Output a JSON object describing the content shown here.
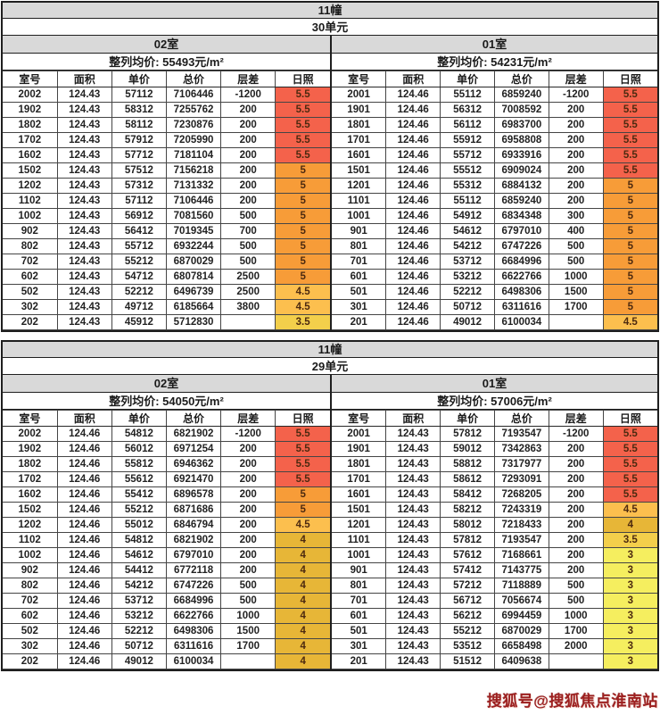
{
  "columns": [
    "室号",
    "面积",
    "单价",
    "总价",
    "层差",
    "日照"
  ],
  "sections": [
    {
      "building": "11幢",
      "unit": "30单元",
      "halves": [
        {
          "room": "02室",
          "avg_label": "整列均价: 55493元/m²",
          "rows": [
            [
              "2002",
              "124.43",
              "57112",
              "7106446",
              "-1200",
              "5.5"
            ],
            [
              "1902",
              "124.43",
              "58312",
              "7255762",
              "200",
              "5.5"
            ],
            [
              "1802",
              "124.43",
              "58112",
              "7230876",
              "200",
              "5.5"
            ],
            [
              "1702",
              "124.43",
              "57912",
              "7205990",
              "200",
              "5.5"
            ],
            [
              "1602",
              "124.43",
              "57712",
              "7181104",
              "200",
              "5.5"
            ],
            [
              "1502",
              "124.43",
              "57512",
              "7156218",
              "200",
              "5"
            ],
            [
              "1202",
              "124.43",
              "57312",
              "7131332",
              "200",
              "5"
            ],
            [
              "1102",
              "124.43",
              "57112",
              "7106446",
              "200",
              "5"
            ],
            [
              "1002",
              "124.43",
              "56912",
              "7081560",
              "500",
              "5"
            ],
            [
              "902",
              "124.43",
              "56412",
              "7019345",
              "700",
              "5"
            ],
            [
              "802",
              "124.43",
              "55712",
              "6932244",
              "500",
              "5"
            ],
            [
              "702",
              "124.43",
              "55212",
              "6870029",
              "500",
              "5"
            ],
            [
              "602",
              "124.43",
              "54712",
              "6807814",
              "2500",
              "5"
            ],
            [
              "502",
              "124.43",
              "52212",
              "6496739",
              "2500",
              "4.5"
            ],
            [
              "302",
              "124.43",
              "49712",
              "6185664",
              "3800",
              "4.5"
            ],
            [
              "202",
              "124.43",
              "45912",
              "5712830",
              "",
              "3.5"
            ]
          ]
        },
        {
          "room": "01室",
          "avg_label": "整列均价: 54231元/m²",
          "rows": [
            [
              "2001",
              "124.46",
              "55112",
              "6859240",
              "-1200",
              "5.5"
            ],
            [
              "1901",
              "124.46",
              "56312",
              "7008592",
              "200",
              "5.5"
            ],
            [
              "1801",
              "124.46",
              "56112",
              "6983700",
              "200",
              "5.5"
            ],
            [
              "1701",
              "124.46",
              "55912",
              "6958808",
              "200",
              "5.5"
            ],
            [
              "1601",
              "124.46",
              "55712",
              "6933916",
              "200",
              "5.5"
            ],
            [
              "1501",
              "124.46",
              "55512",
              "6909024",
              "200",
              "5.5"
            ],
            [
              "1201",
              "124.46",
              "55312",
              "6884132",
              "200",
              "5"
            ],
            [
              "1101",
              "124.46",
              "55112",
              "6859240",
              "200",
              "5"
            ],
            [
              "1001",
              "124.46",
              "54912",
              "6834348",
              "300",
              "5"
            ],
            [
              "901",
              "124.46",
              "54612",
              "6797010",
              "400",
              "5"
            ],
            [
              "801",
              "124.46",
              "54212",
              "6747226",
              "500",
              "5"
            ],
            [
              "701",
              "124.46",
              "53712",
              "6684996",
              "500",
              "5"
            ],
            [
              "601",
              "124.46",
              "53212",
              "6622766",
              "1000",
              "5"
            ],
            [
              "501",
              "124.46",
              "52212",
              "6498306",
              "1500",
              "5"
            ],
            [
              "301",
              "124.46",
              "50712",
              "6311616",
              "1700",
              "5"
            ],
            [
              "201",
              "124.46",
              "49012",
              "6100034",
              "",
              "4.5"
            ]
          ]
        }
      ]
    },
    {
      "building": "11幢",
      "unit": "29单元",
      "halves": [
        {
          "room": "02室",
          "avg_label": "整列均价: 54050元/m²",
          "rows": [
            [
              "2002",
              "124.46",
              "54812",
              "6821902",
              "-1200",
              "5.5"
            ],
            [
              "1902",
              "124.46",
              "56012",
              "6971254",
              "200",
              "5.5"
            ],
            [
              "1802",
              "124.46",
              "55812",
              "6946362",
              "200",
              "5.5"
            ],
            [
              "1702",
              "124.46",
              "55612",
              "6921470",
              "200",
              "5.5"
            ],
            [
              "1602",
              "124.46",
              "55412",
              "6896578",
              "200",
              "5"
            ],
            [
              "1502",
              "124.46",
              "55212",
              "6871686",
              "200",
              "5"
            ],
            [
              "1202",
              "124.46",
              "55012",
              "6846794",
              "200",
              "4.5"
            ],
            [
              "1102",
              "124.46",
              "54812",
              "6821902",
              "200",
              "4"
            ],
            [
              "1002",
              "124.46",
              "54612",
              "6797010",
              "200",
              "4"
            ],
            [
              "902",
              "124.46",
              "54412",
              "6772118",
              "200",
              "4"
            ],
            [
              "802",
              "124.46",
              "54212",
              "6747226",
              "500",
              "4"
            ],
            [
              "702",
              "124.46",
              "53712",
              "6684996",
              "500",
              "4"
            ],
            [
              "602",
              "124.46",
              "53212",
              "6622766",
              "1000",
              "4"
            ],
            [
              "502",
              "124.46",
              "52212",
              "6498306",
              "1500",
              "4"
            ],
            [
              "302",
              "124.46",
              "50712",
              "6311616",
              "1700",
              "4"
            ],
            [
              "202",
              "124.46",
              "49012",
              "6100034",
              "",
              "4"
            ]
          ]
        },
        {
          "room": "01室",
          "avg_label": "整列均价: 57006元/m²",
          "rows": [
            [
              "2001",
              "124.43",
              "57812",
              "7193547",
              "-1200",
              "5.5"
            ],
            [
              "1901",
              "124.43",
              "59012",
              "7342863",
              "200",
              "5.5"
            ],
            [
              "1801",
              "124.43",
              "58812",
              "7317977",
              "200",
              "5.5"
            ],
            [
              "1701",
              "124.43",
              "58612",
              "7293091",
              "200",
              "5.5"
            ],
            [
              "1601",
              "124.43",
              "58412",
              "7268205",
              "200",
              "5.5"
            ],
            [
              "1501",
              "124.43",
              "58212",
              "7243319",
              "200",
              "4.5"
            ],
            [
              "1201",
              "124.43",
              "58012",
              "7218433",
              "200",
              "4"
            ],
            [
              "1101",
              "124.43",
              "57812",
              "7193547",
              "200",
              "3.5"
            ],
            [
              "1001",
              "124.43",
              "57612",
              "7168661",
              "200",
              "3"
            ],
            [
              "901",
              "124.43",
              "57412",
              "7143775",
              "200",
              "3"
            ],
            [
              "801",
              "124.43",
              "57212",
              "7118889",
              "500",
              "3"
            ],
            [
              "701",
              "124.43",
              "56712",
              "7056674",
              "500",
              "3"
            ],
            [
              "601",
              "124.43",
              "56212",
              "6994459",
              "1000",
              "3"
            ],
            [
              "501",
              "124.43",
              "55212",
              "6870029",
              "1700",
              "3"
            ],
            [
              "301",
              "124.43",
              "53512",
              "6658498",
              "2000",
              "3"
            ],
            [
              "201",
              "124.43",
              "51512",
              "6409638",
              "",
              "3"
            ]
          ]
        }
      ]
    }
  ],
  "sun_colors": {
    "5.5": "#f4624b",
    "5": "#f79c38",
    "4.5": "#fcbf4e",
    "4": "#e7b637",
    "3.5": "#f3cf4b",
    "3": "#f5ee5f"
  },
  "watermark": {
    "text": "搜狐号@搜狐焦点淮南站",
    "color": "#9c1f1f"
  }
}
